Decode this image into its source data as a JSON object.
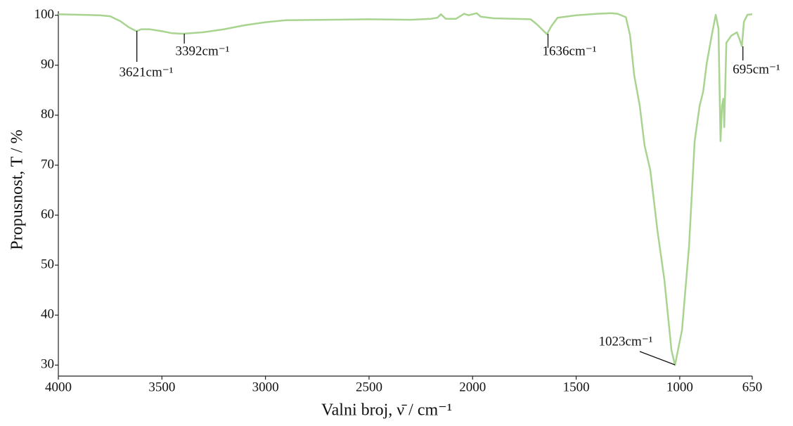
{
  "chart_data": {
    "type": "line",
    "x_label": "Valni broj, ν̄ / cm⁻¹",
    "y_label": "Propusnost, T / %",
    "xlim": [
      4000,
      650
    ],
    "ylim": [
      27.8,
      100.8
    ],
    "xticks": [
      4000,
      3500,
      3000,
      2500,
      2000,
      1500,
      1000,
      650
    ],
    "yticks": [
      30,
      40,
      50,
      60,
      70,
      80,
      90,
      100
    ],
    "color": "#a8d490",
    "x": [
      4000,
      3900,
      3800,
      3750,
      3700,
      3660,
      3623,
      3600,
      3560,
      3500,
      3450,
      3399,
      3300,
      3200,
      3100,
      3000,
      2900,
      2700,
      2500,
      2300,
      2200,
      2170,
      2153,
      2130,
      2080,
      2041,
      2020,
      1980,
      1960,
      1900,
      1800,
      1720,
      1690,
      1641,
      1620,
      1590,
      1500,
      1400,
      1330,
      1300,
      1260,
      1240,
      1220,
      1193,
      1170,
      1142,
      1108,
      1074,
      1040,
      1023,
      989,
      955,
      928,
      904,
      887,
      870,
      846,
      826,
      813,
      803,
      796,
      789,
      785,
      775,
      751,
      724,
      711,
      700,
      690,
      673,
      650
    ],
    "y": [
      100.2,
      100.1,
      100.0,
      99.8,
      98.8,
      97.6,
      96.8,
      97.2,
      97.2,
      96.8,
      96.4,
      96.3,
      96.6,
      97.2,
      98.0,
      98.6,
      99.0,
      99.1,
      99.2,
      99.1,
      99.3,
      99.5,
      100.2,
      99.3,
      99.3,
      100.3,
      100.0,
      100.4,
      99.7,
      99.4,
      99.3,
      99.2,
      98.2,
      96.2,
      97.8,
      99.5,
      100.0,
      100.3,
      100.4,
      100.3,
      99.6,
      96.0,
      88.0,
      81.9,
      74.0,
      69.0,
      57.0,
      47.0,
      33.0,
      30.0,
      37.0,
      53.7,
      74.8,
      81.9,
      84.7,
      90.3,
      95.9,
      100.1,
      97.3,
      74.8,
      81.9,
      83.3,
      77.6,
      94.5,
      95.9,
      96.6,
      95.2,
      93.8,
      98.7,
      100.1,
      100.2
    ],
    "annotations": [
      {
        "x": 3621,
        "label": "3621cm⁻¹"
      },
      {
        "x": 3392,
        "label": "3392cm⁻¹"
      },
      {
        "x": 1636,
        "label": "1636cm⁻¹"
      },
      {
        "x": 1023,
        "label": "1023cm⁻¹"
      },
      {
        "x": 695,
        "label": "695cm⁻¹"
      }
    ]
  }
}
